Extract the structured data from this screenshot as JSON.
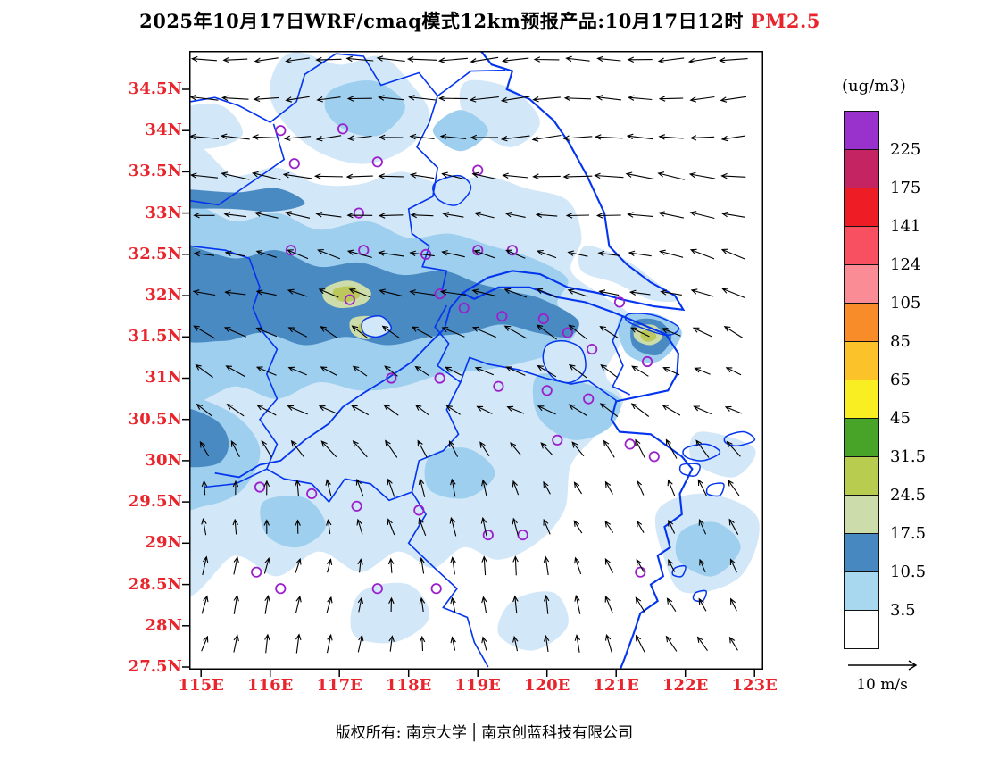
{
  "title": {
    "main": "2025年10月17日WRF/cmaq模式12km预报产品:10月17日12时",
    "species": "PM2.5"
  },
  "legend": {
    "unit": "(ug/m3)",
    "labels": [
      "225",
      "175",
      "141",
      "124",
      "105",
      "85",
      "65",
      "45",
      "31.5",
      "24.5",
      "17.5",
      "10.5",
      "3.5"
    ],
    "colors": [
      "#9932cc",
      "#c42462",
      "#ee1c24",
      "#f85060",
      "#fa8c96",
      "#f88c28",
      "#fcc229",
      "#f8ee21",
      "#48a428",
      "#b8cc50",
      "#ccdcaa",
      "#4888c0",
      "#a8d8f0",
      "#ffffff"
    ]
  },
  "axes": {
    "lat_labels": [
      "34.5N",
      "34N",
      "33.5N",
      "33N",
      "32.5N",
      "32N",
      "31.5N",
      "31N",
      "30.5N",
      "30N",
      "29.5N",
      "29N",
      "28.5N",
      "28N",
      "27.5N"
    ],
    "lon_labels": [
      "115E",
      "116E",
      "117E",
      "118E",
      "119E",
      "120E",
      "121E",
      "122E",
      "123E"
    ],
    "label_color": "#e8252c"
  },
  "wind_scale": {
    "label": "10 m/s"
  },
  "footer": {
    "copyright": "版权所有: 南京大学",
    "divider": "│",
    "company": "南京创蓝科技有限公司"
  },
  "chart_data": {
    "type": "heatmap",
    "title": "2025年10月17日WRF/cmaq模式12km预报产品:10月17日12时 PM2.5",
    "variable": "PM2.5",
    "unit": "ug/m3",
    "lon_range": [
      114.83,
      123.13
    ],
    "lat_range": [
      27.47,
      34.97
    ],
    "contour_levels": [
      3.5,
      10.5,
      17.5,
      24.5,
      31.5,
      45,
      65,
      85,
      105,
      124,
      141,
      175,
      225
    ],
    "legend_colors_top_to_bottom": [
      "#9932cc",
      "#c42462",
      "#ee1c24",
      "#f85060",
      "#fa8c96",
      "#f88c28",
      "#fcc229",
      "#f8ee21",
      "#48a428",
      "#b8cc50",
      "#ccdcaa",
      "#4888c0",
      "#a8d8f0",
      "#ffffff"
    ],
    "map_palette": {
      "pale_blue": "#d2e7f8",
      "mid_blue": "#9ecfef",
      "dark_blue": "#4a8ac2",
      "sage": "#ccdcaa",
      "khaki": "#bcc85c",
      "boundary_blue": "#0435ee",
      "station_purple": "#9b20cc",
      "arrow_black": "#000000"
    },
    "wind": {
      "cols": 18,
      "rows": 16,
      "lon_start": 115.05,
      "lon_step": 0.45,
      "lat_start": 27.78,
      "lat_step": 0.472,
      "reference": "10 m/s"
    },
    "stations": [
      [
        116.15,
        34.0
      ],
      [
        117.05,
        34.02
      ],
      [
        116.35,
        33.6
      ],
      [
        117.55,
        33.62
      ],
      [
        119.0,
        33.52
      ],
      [
        117.28,
        33.0
      ],
      [
        116.3,
        32.55
      ],
      [
        117.35,
        32.55
      ],
      [
        118.25,
        32.5
      ],
      [
        119.0,
        32.55
      ],
      [
        119.5,
        32.55
      ],
      [
        117.15,
        31.95
      ],
      [
        118.45,
        32.02
      ],
      [
        118.8,
        31.85
      ],
      [
        119.35,
        31.75
      ],
      [
        119.95,
        31.72
      ],
      [
        121.05,
        31.92
      ],
      [
        120.3,
        31.55
      ],
      [
        120.65,
        31.35
      ],
      [
        121.45,
        31.2
      ],
      [
        117.75,
        31.0
      ],
      [
        118.45,
        31.0
      ],
      [
        119.3,
        30.9
      ],
      [
        120.0,
        30.85
      ],
      [
        120.6,
        30.75
      ],
      [
        120.15,
        30.25
      ],
      [
        121.2,
        30.2
      ],
      [
        121.55,
        30.05
      ],
      [
        115.85,
        29.68
      ],
      [
        116.6,
        29.6
      ],
      [
        117.25,
        29.45
      ],
      [
        118.15,
        29.4
      ],
      [
        119.15,
        29.1
      ],
      [
        119.65,
        29.1
      ],
      [
        115.8,
        28.65
      ],
      [
        116.15,
        28.45
      ],
      [
        117.55,
        28.45
      ],
      [
        118.4,
        28.45
      ],
      [
        121.35,
        28.65
      ]
    ],
    "hotspots_over_17ugm3": [
      {
        "lon": 117.1,
        "lat": 32.0
      },
      {
        "lon": 117.4,
        "lat": 31.6
      },
      {
        "lon": 121.45,
        "lat": 31.5
      }
    ]
  }
}
